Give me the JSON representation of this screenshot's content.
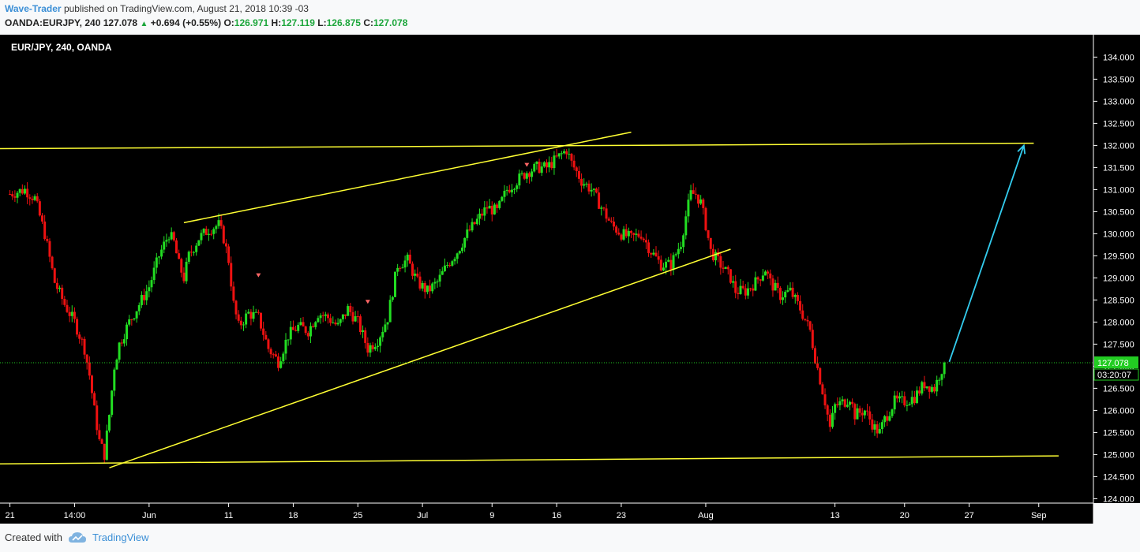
{
  "header": {
    "author": "Wave-Trader",
    "published_text": "published on TradingView.com, August 21, 2018 10:39 -03",
    "symbol_line": "OANDA:EURJPY, 240",
    "last": "127.078",
    "change": "+0.694 (+0.55%)",
    "o_label": "O:",
    "o_value": "126.971",
    "h_label": "H:",
    "h_value": "127.119",
    "l_label": "L:",
    "l_value": "126.875",
    "c_label": "C:",
    "c_value": "127.078"
  },
  "footer": {
    "created_with": "Created with",
    "brand": "TradingView"
  },
  "colors": {
    "up": "#22dd22",
    "down": "#ee1111",
    "trend": "#ffff33",
    "arrow": "#33ccee",
    "price_tag": "#22cc22",
    "background": "#000000"
  },
  "chart_data": {
    "type": "candlestick",
    "title": "EUR/JPY, 240, OANDA",
    "ylim": [
      123.9,
      134.4
    ],
    "y_ticks": [
      "124.000",
      "124.500",
      "125.000",
      "125.500",
      "126.000",
      "126.500",
      "127.000",
      "127.500",
      "128.000",
      "128.500",
      "129.000",
      "129.500",
      "130.000",
      "130.500",
      "131.000",
      "131.500",
      "132.000",
      "132.500",
      "133.000",
      "133.500",
      "134.000"
    ],
    "x_ticks": [
      {
        "label": "21",
        "x": 0
      },
      {
        "label": "14:00",
        "x": 13
      },
      {
        "label": "Jun",
        "x": 28
      },
      {
        "label": "11",
        "x": 44
      },
      {
        "label": "18",
        "x": 57
      },
      {
        "label": "25",
        "x": 70
      },
      {
        "label": "Jul",
        "x": 83
      },
      {
        "label": "9",
        "x": 97
      },
      {
        "label": "16",
        "x": 110
      },
      {
        "label": "23",
        "x": 123
      },
      {
        "label": "Aug",
        "x": 140
      },
      {
        "label": "13",
        "x": 166
      },
      {
        "label": "20",
        "x": 180
      },
      {
        "label": "27",
        "x": 193
      },
      {
        "label": "Sep",
        "x": 207
      }
    ],
    "xlim": [
      -2,
      218
    ],
    "last_price": "127.078",
    "countdown": "03:20:07",
    "price_path": [
      [
        0,
        130.9
      ],
      [
        3,
        131.0
      ],
      [
        5,
        130.8
      ],
      [
        7,
        130.0
      ],
      [
        9,
        128.9
      ],
      [
        11,
        128.4
      ],
      [
        13,
        128.0
      ],
      [
        15,
        127.4
      ],
      [
        16,
        126.8
      ],
      [
        17,
        126.0
      ],
      [
        18,
        125.3
      ],
      [
        19,
        125.0
      ],
      [
        20,
        125.9
      ],
      [
        21,
        127.0
      ],
      [
        22,
        127.5
      ],
      [
        24,
        128.0
      ],
      [
        26,
        128.4
      ],
      [
        28,
        128.8
      ],
      [
        30,
        129.5
      ],
      [
        32,
        130.0
      ],
      [
        33,
        129.8
      ],
      [
        34,
        129.3
      ],
      [
        35,
        129.0
      ],
      [
        36,
        129.5
      ],
      [
        38,
        129.9
      ],
      [
        40,
        130.1
      ],
      [
        42,
        130.2
      ],
      [
        43,
        129.9
      ],
      [
        44,
        129.4
      ],
      [
        45,
        128.4
      ],
      [
        46,
        127.9
      ],
      [
        48,
        128.2
      ],
      [
        50,
        128.1
      ],
      [
        52,
        127.4
      ],
      [
        54,
        127.1
      ],
      [
        56,
        127.7
      ],
      [
        58,
        127.9
      ],
      [
        60,
        127.8
      ],
      [
        62,
        128.2
      ],
      [
        64,
        128.1
      ],
      [
        66,
        127.9
      ],
      [
        68,
        128.3
      ],
      [
        70,
        128.0
      ],
      [
        72,
        127.4
      ],
      [
        74,
        127.6
      ],
      [
        76,
        128.1
      ],
      [
        77,
        128.7
      ],
      [
        78,
        129.3
      ],
      [
        80,
        129.4
      ],
      [
        82,
        128.9
      ],
      [
        84,
        128.7
      ],
      [
        86,
        128.9
      ],
      [
        88,
        129.3
      ],
      [
        90,
        129.6
      ],
      [
        92,
        130.0
      ],
      [
        94,
        130.3
      ],
      [
        96,
        130.6
      ],
      [
        98,
        130.5
      ],
      [
        100,
        131.0
      ],
      [
        102,
        131.2
      ],
      [
        104,
        131.4
      ],
      [
        106,
        131.5
      ],
      [
        108,
        131.5
      ],
      [
        110,
        131.7
      ],
      [
        112,
        131.9
      ],
      [
        113,
        131.6
      ],
      [
        115,
        131.2
      ],
      [
        117,
        131.0
      ],
      [
        119,
        130.6
      ],
      [
        121,
        130.2
      ],
      [
        123,
        130.0
      ],
      [
        125,
        129.9
      ],
      [
        127,
        130.0
      ],
      [
        129,
        129.6
      ],
      [
        131,
        129.3
      ],
      [
        133,
        129.3
      ],
      [
        135,
        129.8
      ],
      [
        136,
        130.4
      ],
      [
        137,
        130.9
      ],
      [
        138,
        130.9
      ],
      [
        139,
        130.7
      ],
      [
        140,
        130.2
      ],
      [
        141,
        129.6
      ],
      [
        143,
        129.3
      ],
      [
        145,
        129.0
      ],
      [
        146,
        128.7
      ],
      [
        148,
        128.7
      ],
      [
        150,
        128.9
      ],
      [
        152,
        129.2
      ],
      [
        153,
        128.9
      ],
      [
        155,
        128.6
      ],
      [
        157,
        128.7
      ],
      [
        159,
        128.3
      ],
      [
        161,
        127.8
      ],
      [
        162,
        127.2
      ],
      [
        163,
        126.7
      ],
      [
        164,
        126.2
      ],
      [
        165,
        125.6
      ],
      [
        166,
        126.1
      ],
      [
        168,
        126.2
      ],
      [
        169,
        126.3
      ],
      [
        170,
        125.9
      ],
      [
        172,
        126.0
      ],
      [
        174,
        125.6
      ],
      [
        175,
        125.5
      ],
      [
        176,
        125.8
      ],
      [
        178,
        126.2
      ],
      [
        180,
        126.2
      ],
      [
        182,
        126.3
      ],
      [
        184,
        126.6
      ],
      [
        186,
        126.5
      ],
      [
        187,
        126.8
      ],
      [
        188,
        127.078
      ]
    ],
    "trend_lines": [
      {
        "from": [
          -13,
          131.92
        ],
        "to": [
          206,
          132.05
        ]
      },
      {
        "from": [
          -12,
          124.78
        ],
        "to": [
          211,
          124.97
        ]
      },
      {
        "from": [
          20,
          124.7
        ],
        "to": [
          145,
          129.65
        ]
      },
      {
        "from": [
          35,
          130.25
        ],
        "to": [
          125,
          132.3
        ]
      }
    ],
    "arrow": {
      "from": [
        189,
        127.1
      ],
      "to": [
        204,
        132.0
      ]
    },
    "signals": [
      [
        50,
        129.05
      ],
      [
        72,
        128.45
      ],
      [
        104,
        131.55
      ]
    ]
  }
}
